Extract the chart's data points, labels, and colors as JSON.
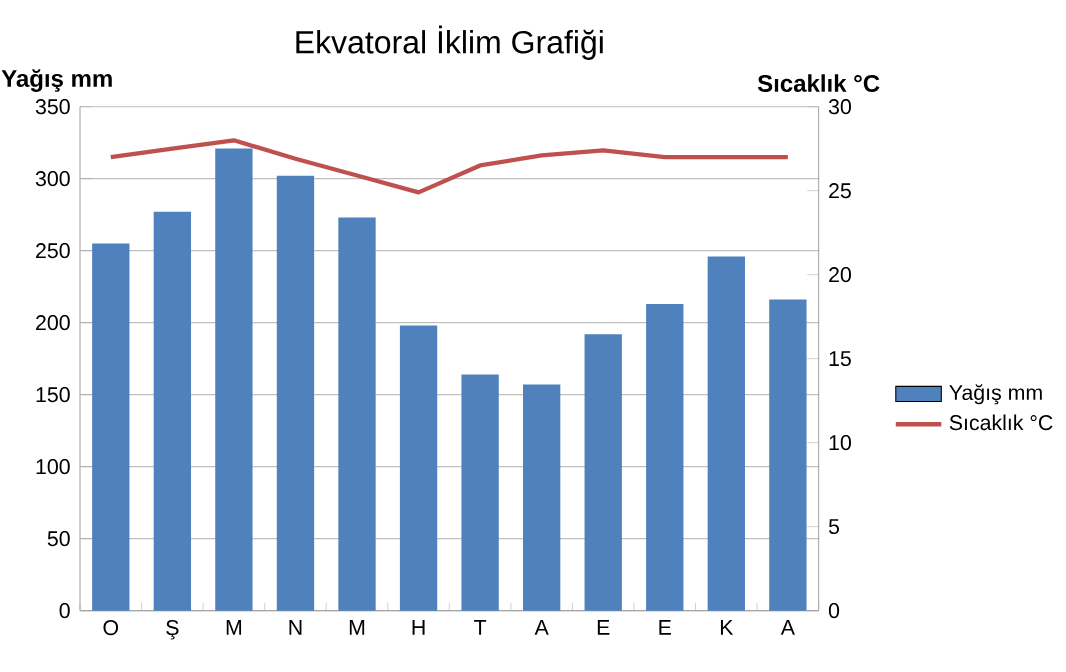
{
  "chart_data": {
    "type": "bar",
    "title": "Ekvatoral İklim Grafiği",
    "ylabel": "Yağış mm",
    "y2label": "Sıcaklık °C",
    "categories": [
      "O",
      "Ş",
      "M",
      "N",
      "M",
      "H",
      "T",
      "A",
      "E",
      "E",
      "K",
      "A"
    ],
    "series": [
      {
        "name": "Yağış mm",
        "color": "#4f81bd",
        "values": [
          255,
          277,
          321,
          302,
          273,
          198,
          164,
          157,
          192,
          213,
          246,
          216
        ]
      },
      {
        "name": "Sıcaklık °C",
        "type": "line",
        "axis": "y2",
        "color": "#c0504d",
        "values": [
          27.0,
          27.5,
          28.0,
          26.9,
          25.9,
          24.9,
          26.5,
          27.1,
          27.4,
          27.0,
          27.0,
          27.0
        ]
      }
    ],
    "ylim": [
      0,
      350
    ],
    "yticks": [
      0,
      50,
      100,
      150,
      200,
      250,
      300,
      350
    ],
    "y2lim": [
      0,
      30
    ],
    "y2ticks": [
      0,
      5,
      10,
      15,
      20,
      25,
      30
    ],
    "grid": "y",
    "legend": "right",
    "marker": "none",
    "line_style": "solid"
  }
}
